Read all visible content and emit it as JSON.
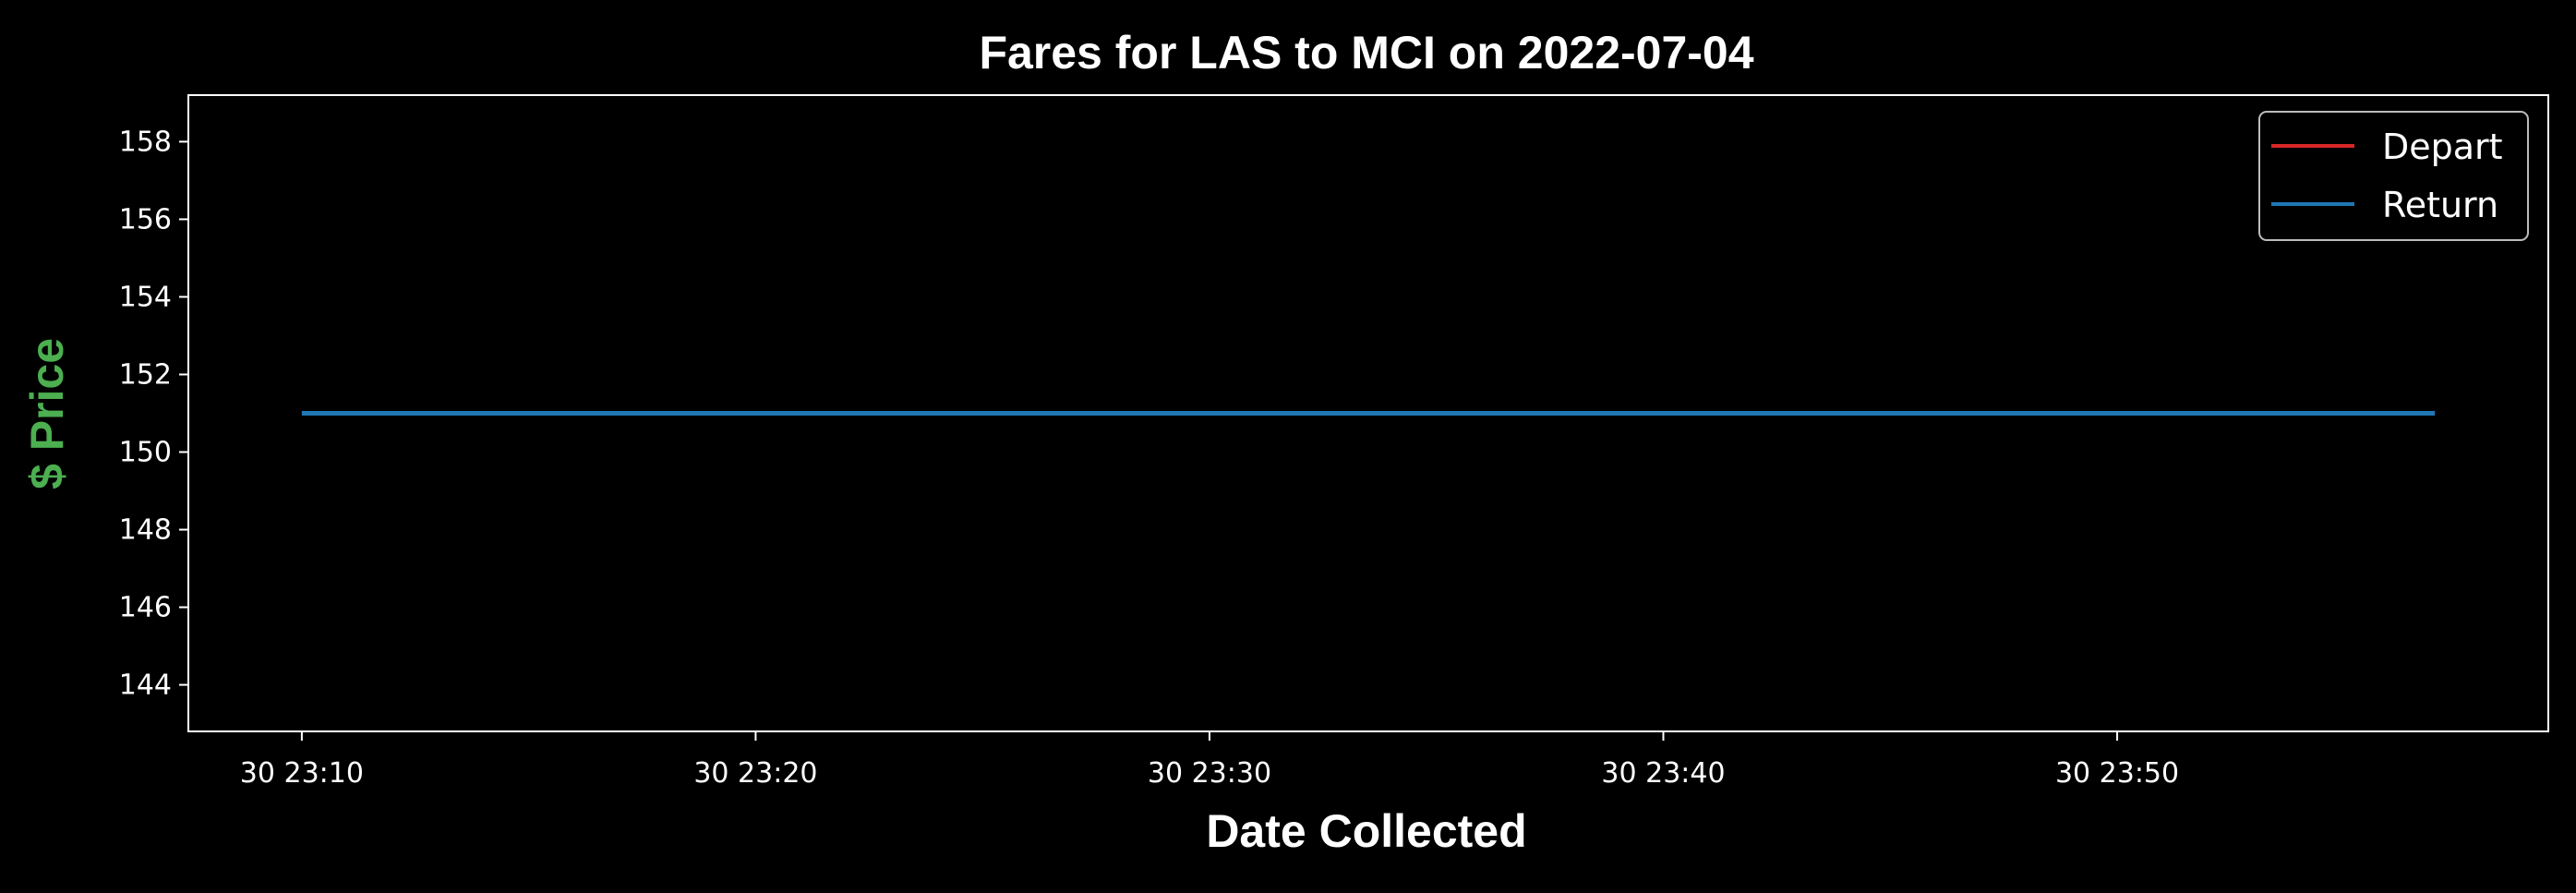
{
  "chart_data": {
    "type": "line",
    "title": "Fares for LAS to MCI on 2022-07-04",
    "xlabel": "Date Collected",
    "ylabel": "$ Price",
    "x": [
      "2022-06-30 23:10",
      "2022-06-30 23:57"
    ],
    "xlim": [
      "2022-06-30 23:07:30",
      "2022-06-30 23:59:30"
    ],
    "xticks": [
      "30 23:10",
      "30 23:20",
      "30 23:30",
      "30 23:40",
      "30 23:50"
    ],
    "ylim": [
      142.8,
      159.2
    ],
    "yticks": [
      144,
      146,
      148,
      150,
      152,
      154,
      156,
      158
    ],
    "grid": false,
    "legend_position": "top-right",
    "series": [
      {
        "name": "Depart",
        "color": "#d62728",
        "values": [
          151,
          151
        ]
      },
      {
        "name": "Return",
        "color": "#1f77b4",
        "values": [
          151,
          151
        ]
      }
    ],
    "colors": {
      "background": "#000000",
      "foreground": "#ffffff",
      "ylabel": "#4caf50"
    }
  }
}
